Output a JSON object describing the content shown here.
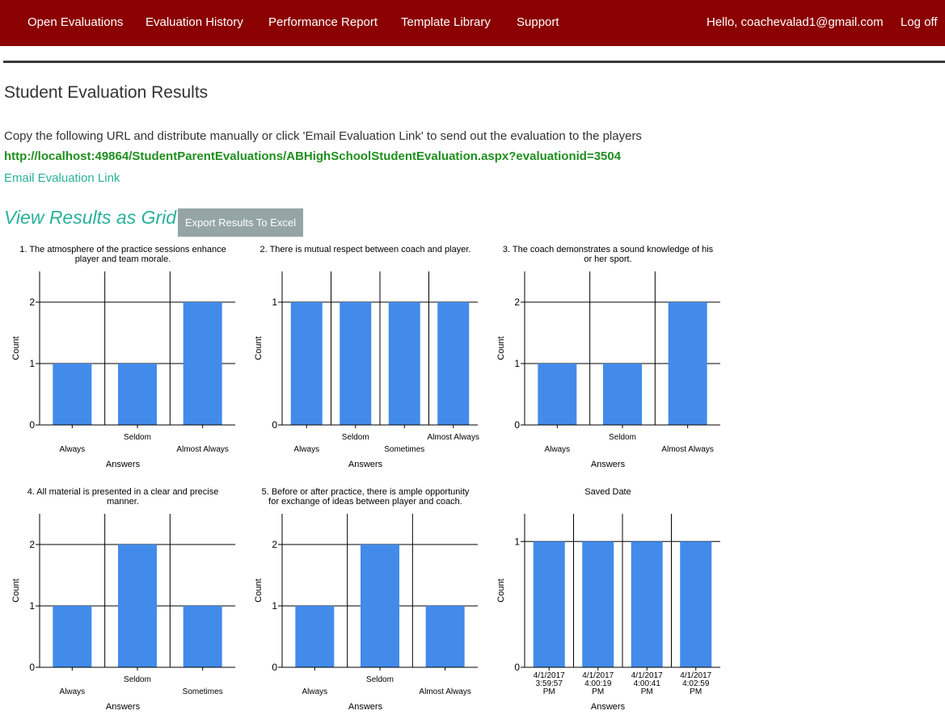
{
  "nav": {
    "items": [
      {
        "label": "Open Evaluations"
      },
      {
        "label": "Evaluation History"
      },
      {
        "label": "Performance Report"
      },
      {
        "label": "Template Library"
      },
      {
        "label": "Support"
      }
    ],
    "greeting": "Hello, coachevalad1@gmail.com",
    "logoff": "Log off"
  },
  "page": {
    "title": "Student Evaluation Results",
    "instructions": "Copy the following URL and distribute manually or click 'Email Evaluation Link' to send out the evaluation to the players",
    "url": "http://localhost:49864/StudentParentEvaluations/ABHighSchoolStudentEvaluation.aspx?evaluationid=3504",
    "email_link": "Email Evaluation Link",
    "grid_heading": "View Results as Grid",
    "export_button": "Export Results To Excel"
  },
  "colors": {
    "nav_bg": "#8b0000",
    "bar": "#428bea",
    "accent": "#2ab19a",
    "url": "#1f8f1f",
    "button": "#95a5a6"
  },
  "chart_data": [
    {
      "type": "bar",
      "title": [
        "1.   The atmosphere of the practice sessions enhance",
        "player and team morale."
      ],
      "categories": [
        "Always",
        "Seldom",
        "Almost Always"
      ],
      "values": [
        1,
        1,
        2
      ],
      "xlabel": "Answers",
      "ylabel": "Count",
      "ylim": [
        0,
        2.5
      ],
      "yticks": [
        0,
        1,
        2
      ],
      "grid": true
    },
    {
      "type": "bar",
      "title": [
        "2.   There is mutual respect between coach and player."
      ],
      "categories": [
        "Always",
        "Seldom",
        "Sometimes",
        "Almost Always"
      ],
      "values": [
        1,
        1,
        1,
        1
      ],
      "xlabel": "Answers",
      "ylabel": "Count",
      "ylim": [
        0,
        1.25
      ],
      "yticks": [
        0,
        1
      ],
      "grid": true
    },
    {
      "type": "bar",
      "title": [
        "3.   The coach demonstrates a sound knowledge of his",
        "or her sport."
      ],
      "categories": [
        "Always",
        "Seldom",
        "Almost Always"
      ],
      "values": [
        1,
        1,
        2
      ],
      "xlabel": "Answers",
      "ylabel": "Count",
      "ylim": [
        0,
        2.5
      ],
      "yticks": [
        0,
        1,
        2
      ],
      "grid": true
    },
    {
      "type": "bar",
      "title": [
        "4.   All material is presented in a clear and precise",
        "manner."
      ],
      "categories": [
        "Always",
        "Seldom",
        "Sometimes"
      ],
      "values": [
        1,
        2,
        1
      ],
      "xlabel": "Answers",
      "ylabel": "Count",
      "ylim": [
        0,
        2.5
      ],
      "yticks": [
        0,
        1,
        2
      ],
      "grid": true
    },
    {
      "type": "bar",
      "title": [
        "5.   Before or after practice, there is ample opportunity",
        "for exchange of ideas between player and coach."
      ],
      "categories": [
        "Always",
        "Seldom",
        "Almost Always"
      ],
      "values": [
        1,
        2,
        1
      ],
      "xlabel": "Answers",
      "ylabel": "Count",
      "ylim": [
        0,
        2.5
      ],
      "yticks": [
        0,
        1,
        2
      ],
      "grid": true
    },
    {
      "type": "bar",
      "title": [
        "Saved Date"
      ],
      "categories": [
        [
          "4/1/2017",
          "3:59:57",
          "PM"
        ],
        [
          "4/1/2017",
          "4:00:19",
          "PM"
        ],
        [
          "4/1/2017",
          "4:00:41",
          "PM"
        ],
        [
          "4/1/2017",
          "4:02:59",
          "PM"
        ]
      ],
      "values": [
        1,
        1,
        1,
        1
      ],
      "xlabel": "Answers",
      "ylabel": "Count",
      "ylim": [
        0,
        1.22
      ],
      "yticks": [
        0,
        1
      ],
      "grid": true
    }
  ]
}
